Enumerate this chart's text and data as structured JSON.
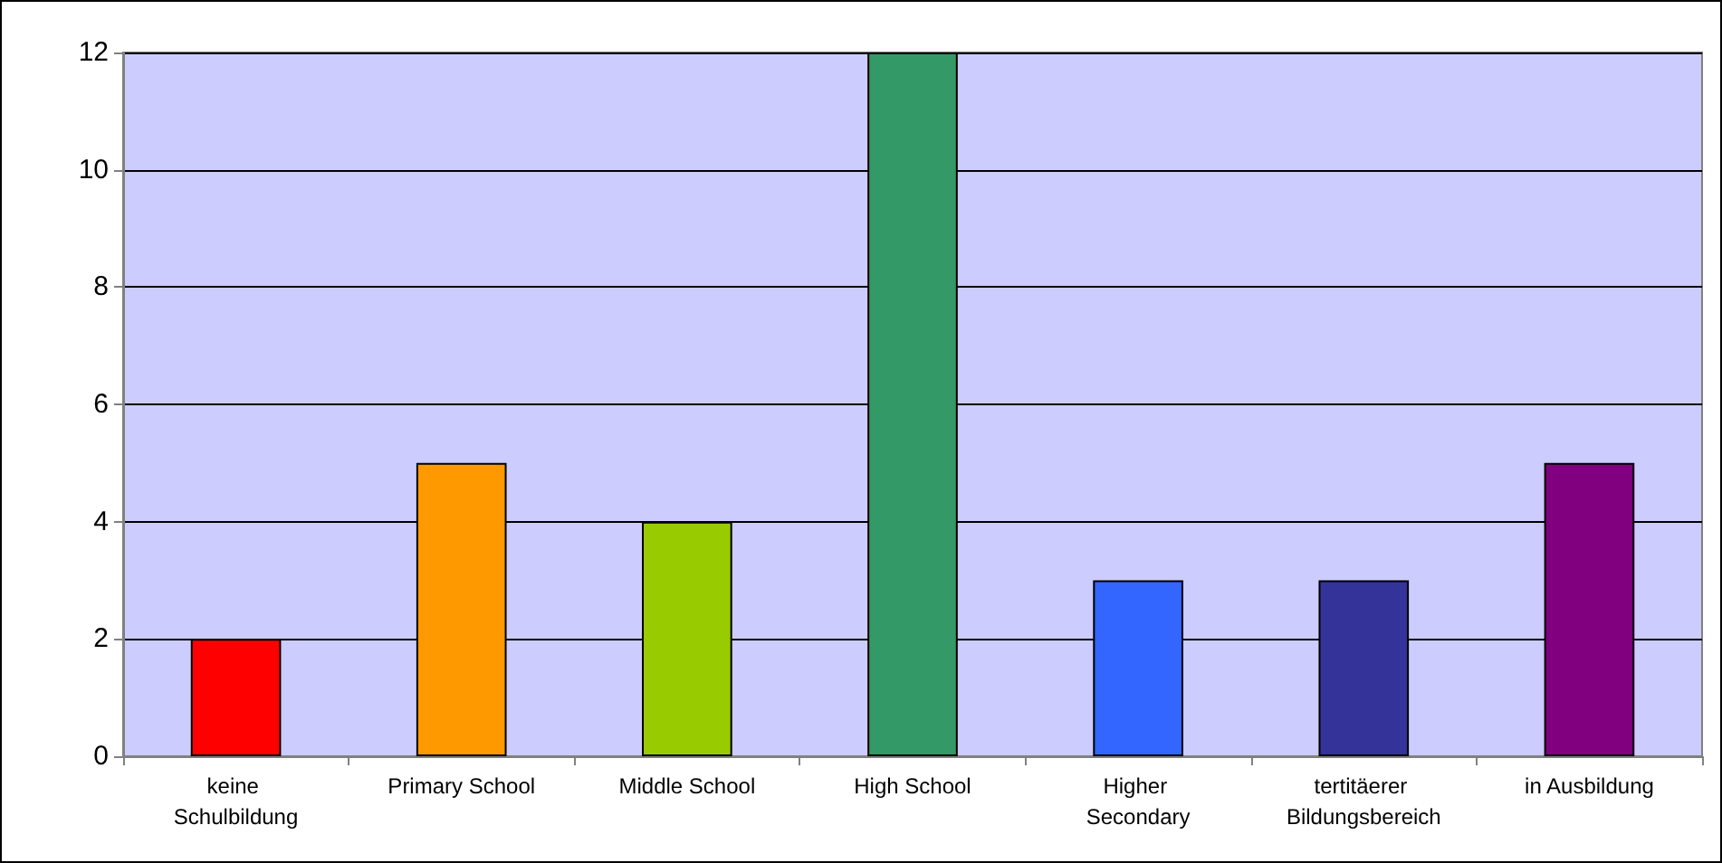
{
  "chart_data": {
    "type": "bar",
    "categories": [
      "keine Schulbildung",
      "Primary School",
      "Middle School",
      "High School",
      "Higher Secondary",
      "tertitäerer Bildungsbereich",
      "in Ausbildung"
    ],
    "values": [
      2,
      5,
      4,
      12,
      3,
      3,
      5
    ],
    "colors": [
      "#ff0000",
      "#ff9900",
      "#99cc00",
      "#339966",
      "#3366ff",
      "#333399",
      "#800080"
    ],
    "ylim": [
      0,
      12
    ],
    "yticks": [
      0,
      2,
      4,
      6,
      8,
      10,
      12
    ],
    "grid": "y"
  }
}
